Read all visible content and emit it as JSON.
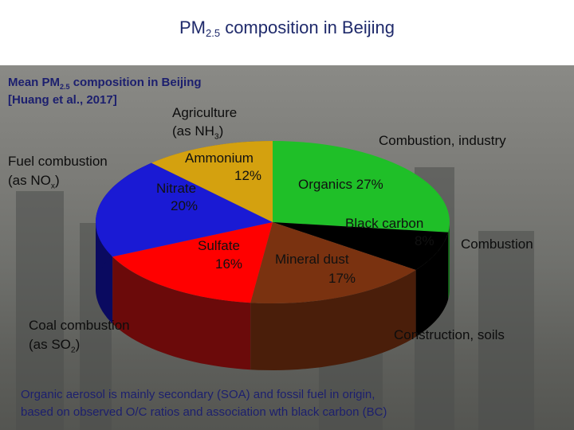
{
  "page": {
    "title_main": "PM",
    "title_sub": "2.5",
    "title_rest": " composition in Beijing"
  },
  "reference": {
    "line1_main": "Mean PM",
    "line1_sub": "2.5",
    "line1_rest": " composition in Beijing",
    "line2": "[Huang et al., 2017]"
  },
  "annotations": {
    "agriculture_line1": "Agriculture",
    "agriculture_line2_main": "(as NH",
    "agriculture_line2_sub": "3",
    "agriculture_line2_rest": ")",
    "combustion_industry": "Combustion, industry",
    "fuel_line1": "Fuel combustion",
    "fuel_line2_main": "(as NO",
    "fuel_line2_sub": "x",
    "fuel_line2_rest": ")",
    "coal_line1": "Coal combustion",
    "coal_line2_main": "(as SO",
    "coal_line2_sub": "2",
    "coal_line2_rest": ")",
    "combustion": "Combustion",
    "construction": "Construction,  soils"
  },
  "footer": {
    "line1": "Organic aerosol is mainly secondary (SOA) and fossil fuel in origin,",
    "line2": "based on observed O/C ratios and association wth black carbon (BC)"
  },
  "chart_data": {
    "type": "pie",
    "title": "PM2.5 composition in Beijing",
    "slices": [
      {
        "label": "Organics",
        "value": 27,
        "value_text": "27%",
        "color": "#1fbf28",
        "side": "#0f6e14"
      },
      {
        "label": "Black carbon",
        "value": 8,
        "value_text": "8%",
        "color": "#000000",
        "side": "#000000"
      },
      {
        "label": "Mineral dust",
        "value": 17,
        "value_text": "17%",
        "color": "#7a3210",
        "side": "#4a1e0a"
      },
      {
        "label": "Sulfate",
        "value": 16,
        "value_text": "16%",
        "color": "#ff0000",
        "side": "#6b0a0a"
      },
      {
        "label": "Nitrate",
        "value": 20,
        "value_text": "20%",
        "color": "#1a1ad4",
        "side": "#0a0a60"
      },
      {
        "label": "Ammonium",
        "value": 12,
        "value_text": "12%",
        "color": "#d4a10f",
        "side": "#7a5c08"
      }
    ]
  }
}
